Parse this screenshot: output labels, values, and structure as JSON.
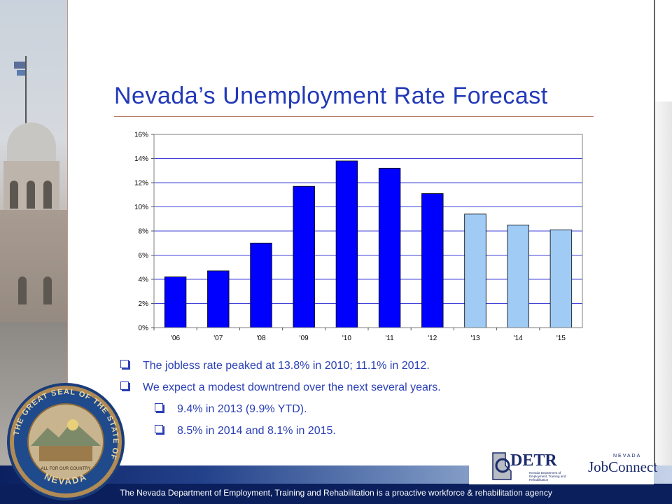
{
  "slide": {
    "title": "Nevada’s Unemployment Rate Forecast",
    "bullets": [
      {
        "text": "The jobless rate peaked at 13.8% in 2010; 11.1% in 2012.",
        "level": 1
      },
      {
        "text": "We expect a modest downtrend over the next several years.",
        "level": 1
      },
      {
        "text": "9.4% in 2013 (9.9% YTD).",
        "level": 2
      },
      {
        "text": "8.5% in 2014 and 8.1% in 2015.",
        "level": 2
      }
    ],
    "footer_text": "The Nevada Department of Employment, Training and Rehabilitation is a proactive workforce & rehabilitation agency",
    "logos": {
      "detr": "DETR",
      "detr_sub": "Nevada Department of Employment, Training and Rehabilitation",
      "jobconnect_top": "NEVADA",
      "jobconnect": "JobConnect"
    },
    "seal_text": {
      "ring": "THE GREAT SEAL OF THE STATE OF",
      "bottom": "NEVADA",
      "motto": "ALL FOR OUR COUNTRY"
    }
  },
  "chart_data": {
    "type": "bar",
    "categories": [
      "'06",
      "'07",
      "'08",
      "'09",
      "'10",
      "'11",
      "'12",
      "'13",
      "'14",
      "'15"
    ],
    "values": [
      4.2,
      4.7,
      7.0,
      11.7,
      13.8,
      13.2,
      11.1,
      9.4,
      8.5,
      8.1
    ],
    "forecast": [
      false,
      false,
      false,
      false,
      false,
      false,
      false,
      true,
      true,
      true
    ],
    "yticks": [
      "0%",
      "2%",
      "4%",
      "6%",
      "8%",
      "10%",
      "12%",
      "14%",
      "16%"
    ],
    "ylim": [
      0,
      16
    ],
    "grid": true,
    "colors": {
      "actual": "#0000ff",
      "forecast": "#9fcbf5"
    }
  }
}
